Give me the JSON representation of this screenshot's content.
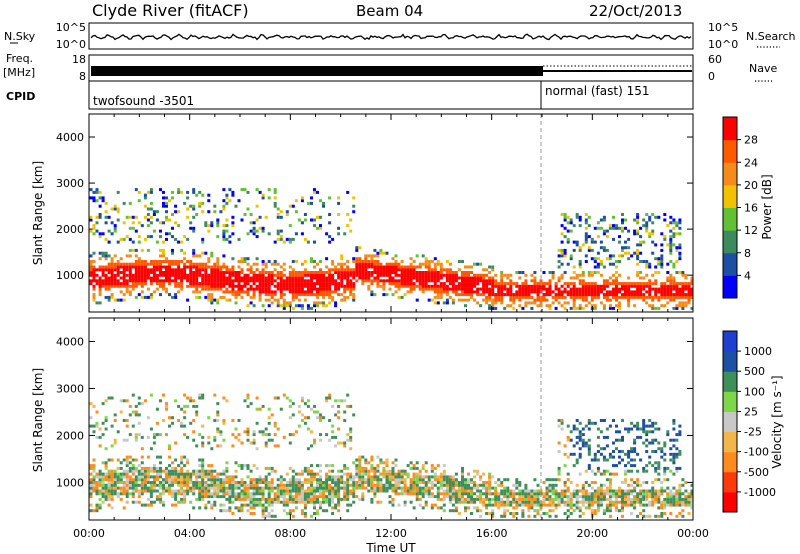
{
  "header": {
    "station": "Clyde River (fitACF)",
    "beam": "Beam 04",
    "date": "22/Oct/2013"
  },
  "aux_panels": {
    "nsky": {
      "left_label": "N.Sky",
      "right_label": "N.Search",
      "left_ticks": [
        "10^5",
        "10^0"
      ],
      "right_ticks": [
        "10^5",
        "10^0"
      ]
    },
    "freq": {
      "left_label_line1": "Freq.",
      "left_label_line2": "[MHz]",
      "right_label": "Nave",
      "left_ticks": [
        "18",
        "8"
      ],
      "right_ticks": [
        "60",
        "0"
      ]
    },
    "cpid": {
      "label": "CPID",
      "modes": [
        {
          "name": "twofsound -3501",
          "start_hour": 0,
          "end_hour": 18
        },
        {
          "name": "normal (fast) 151",
          "start_hour": 18,
          "end_hour": 24
        }
      ]
    }
  },
  "colors": {
    "power_scale": [
      "#0000ff",
      "#1d4fa5",
      "#3d8a5e",
      "#63c032",
      "#f2c200",
      "#f48b1a",
      "#ff5a00",
      "#ff0000"
    ],
    "velocity_scale": [
      "#ff0000",
      "#ff3a0a",
      "#ff8a1e",
      "#f2b64a",
      "#c8c8c8",
      "#7ed64b",
      "#3f8f5a",
      "#1d4fa5",
      "#1f3fd0"
    ],
    "divider": "#999999"
  },
  "chart_data": [
    {
      "type": "heatmap",
      "title": "",
      "ylabel": "Slant Range [km]",
      "yticks": [
        "1000",
        "2000",
        "3000",
        "4000"
      ],
      "ylim": [
        200,
        4500
      ],
      "xlim": [
        0,
        24
      ],
      "xticks": [
        "00:00",
        "04:00",
        "08:00",
        "12:00",
        "16:00",
        "20:00",
        "00:00"
      ],
      "colorbar": {
        "label": "Power [dB]",
        "ticks": [
          "4",
          "8",
          "12",
          "16",
          "20",
          "24",
          "28"
        ],
        "range": [
          0,
          30
        ]
      }
    },
    {
      "type": "heatmap",
      "title": "",
      "ylabel": "Slant Range [km]",
      "yticks": [
        "1000",
        "2000",
        "3000",
        "4000"
      ],
      "ylim": [
        200,
        4500
      ],
      "xlim": [
        0,
        24
      ],
      "xticks": [
        "00:00",
        "04:00",
        "08:00",
        "12:00",
        "16:00",
        "20:00",
        "00:00"
      ],
      "xlabel": "Time UT",
      "colorbar": {
        "label": "Velocity [m s⁻¹]",
        "ticks": [
          "1000",
          "500",
          "100",
          "25",
          "-25",
          "-100",
          "-500",
          "-1000"
        ],
        "range": [
          -1000,
          1000
        ]
      }
    }
  ]
}
